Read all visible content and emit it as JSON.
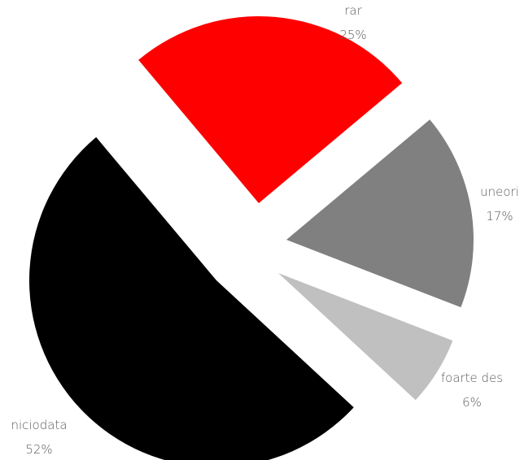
{
  "chart_data": {
    "type": "pie",
    "title": "",
    "slices": [
      {
        "label": "rar",
        "percent_label": "25%",
        "value": 25,
        "color": "#ff0000"
      },
      {
        "label": "uneori",
        "percent_label": "17%",
        "value": 17,
        "color": "#808080"
      },
      {
        "label": "foarte des",
        "percent_label": "6%",
        "value": 6,
        "color": "#c0c0c0"
      },
      {
        "label": "niciodata",
        "percent_label": "52%",
        "value": 52,
        "color": "#000000"
      }
    ],
    "start_angle_deg": -40,
    "direction": "clockwise",
    "exploded": true,
    "legend": "none"
  }
}
